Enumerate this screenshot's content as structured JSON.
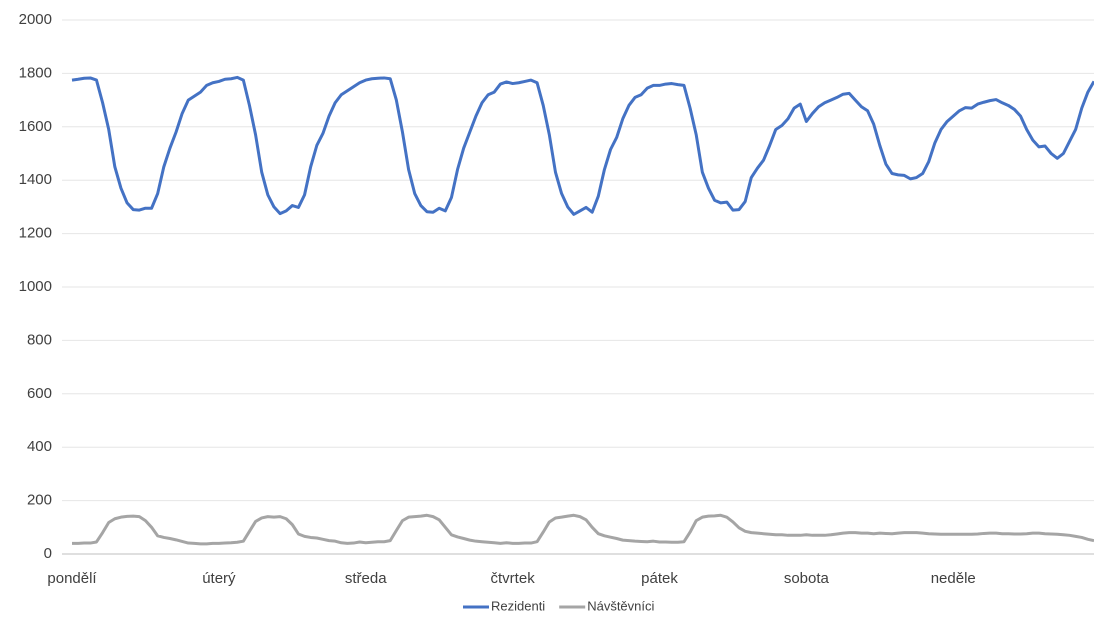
{
  "chart_data": {
    "type": "line",
    "categories": [
      "pondělí",
      null,
      null,
      null,
      null,
      null,
      null,
      null,
      null,
      null,
      null,
      null,
      null,
      null,
      null,
      null,
      null,
      null,
      null,
      null,
      null,
      null,
      null,
      null,
      "úterý",
      null,
      null,
      null,
      null,
      null,
      null,
      null,
      null,
      null,
      null,
      null,
      null,
      null,
      null,
      null,
      null,
      null,
      null,
      null,
      null,
      null,
      null,
      null,
      "středa",
      null,
      null,
      null,
      null,
      null,
      null,
      null,
      null,
      null,
      null,
      null,
      null,
      null,
      null,
      null,
      null,
      null,
      null,
      null,
      null,
      null,
      null,
      null,
      "čtvrtek",
      null,
      null,
      null,
      null,
      null,
      null,
      null,
      null,
      null,
      null,
      null,
      null,
      null,
      null,
      null,
      null,
      null,
      null,
      null,
      null,
      null,
      null,
      null,
      "pátek",
      null,
      null,
      null,
      null,
      null,
      null,
      null,
      null,
      null,
      null,
      null,
      null,
      null,
      null,
      null,
      null,
      null,
      null,
      null,
      null,
      null,
      null,
      null,
      "sobota",
      null,
      null,
      null,
      null,
      null,
      null,
      null,
      null,
      null,
      null,
      null,
      null,
      null,
      null,
      null,
      null,
      null,
      null,
      null,
      null,
      null,
      null,
      null,
      "neděle",
      null,
      null,
      null,
      null,
      null,
      null,
      null,
      null,
      null,
      null,
      null,
      null,
      null,
      null,
      null,
      null,
      null,
      null,
      null,
      null,
      null,
      null,
      null
    ],
    "series": [
      {
        "name": "Rezidenti",
        "color": "#4472c4",
        "values": [
          1775,
          1778,
          1782,
          1783,
          1775,
          1690,
          1590,
          1450,
          1370,
          1315,
          1290,
          1288,
          1295,
          1295,
          1350,
          1450,
          1520,
          1580,
          1650,
          1700,
          1715,
          1730,
          1755,
          1765,
          1770,
          1778,
          1780,
          1785,
          1775,
          1680,
          1570,
          1430,
          1345,
          1300,
          1275,
          1285,
          1305,
          1298,
          1345,
          1450,
          1530,
          1575,
          1640,
          1690,
          1720,
          1735,
          1750,
          1765,
          1775,
          1780,
          1782,
          1783,
          1780,
          1700,
          1580,
          1440,
          1350,
          1305,
          1282,
          1280,
          1295,
          1285,
          1335,
          1440,
          1520,
          1580,
          1640,
          1690,
          1720,
          1730,
          1760,
          1768,
          1762,
          1765,
          1770,
          1775,
          1765,
          1680,
          1570,
          1430,
          1350,
          1300,
          1272,
          1285,
          1298,
          1280,
          1340,
          1440,
          1515,
          1560,
          1630,
          1680,
          1710,
          1720,
          1745,
          1755,
          1755,
          1760,
          1762,
          1758,
          1755,
          1670,
          1570,
          1430,
          1370,
          1325,
          1315,
          1318,
          1288,
          1290,
          1320,
          1410,
          1445,
          1475,
          1530,
          1590,
          1605,
          1630,
          1670,
          1685,
          1620,
          1650,
          1675,
          1690,
          1700,
          1710,
          1722,
          1725,
          1700,
          1675,
          1660,
          1610,
          1530,
          1460,
          1425,
          1420,
          1418,
          1405,
          1410,
          1425,
          1470,
          1540,
          1590,
          1620,
          1640,
          1660,
          1672,
          1670,
          1685,
          1692,
          1698,
          1702,
          1690,
          1680,
          1665,
          1640,
          1590,
          1550,
          1525,
          1528,
          1500,
          1482,
          1500,
          1545,
          1590,
          1670,
          1730,
          1770
        ]
      },
      {
        "name": "Návštěvníci",
        "color": "#a5a5a5",
        "values": [
          40,
          40,
          41,
          41,
          45,
          80,
          118,
          132,
          138,
          141,
          142,
          140,
          125,
          100,
          68,
          62,
          58,
          53,
          47,
          41,
          40,
          38,
          38,
          40,
          40,
          41,
          42,
          44,
          48,
          85,
          122,
          135,
          140,
          138,
          140,
          132,
          110,
          75,
          66,
          62,
          60,
          55,
          50,
          48,
          42,
          40,
          41,
          45,
          42,
          44,
          46,
          46,
          50,
          88,
          125,
          138,
          140,
          142,
          145,
          140,
          128,
          100,
          72,
          64,
          58,
          52,
          48,
          46,
          44,
          42,
          40,
          42,
          40,
          40,
          41,
          41,
          46,
          82,
          120,
          135,
          138,
          142,
          145,
          140,
          128,
          100,
          76,
          68,
          63,
          58,
          52,
          50,
          48,
          47,
          46,
          48,
          45,
          45,
          44,
          44,
          46,
          82,
          125,
          138,
          142,
          143,
          145,
          138,
          120,
          98,
          85,
          80,
          78,
          76,
          74,
          72,
          72,
          70,
          70,
          70,
          72,
          70,
          70,
          70,
          72,
          75,
          78,
          80,
          80,
          78,
          78,
          76,
          78,
          77,
          76,
          78,
          80,
          80,
          80,
          78,
          76,
          75,
          74,
          74,
          74,
          74,
          74,
          74,
          75,
          77,
          78,
          78,
          76,
          76,
          75,
          75,
          76,
          78,
          78,
          76,
          75,
          74,
          72,
          70,
          66,
          62,
          55,
          50
        ]
      }
    ],
    "ylim": [
      0,
      2000
    ],
    "yticks": [
      0,
      200,
      400,
      600,
      800,
      1000,
      1200,
      1400,
      1600,
      1800,
      2000
    ],
    "grid": true,
    "legend": "bottom"
  }
}
